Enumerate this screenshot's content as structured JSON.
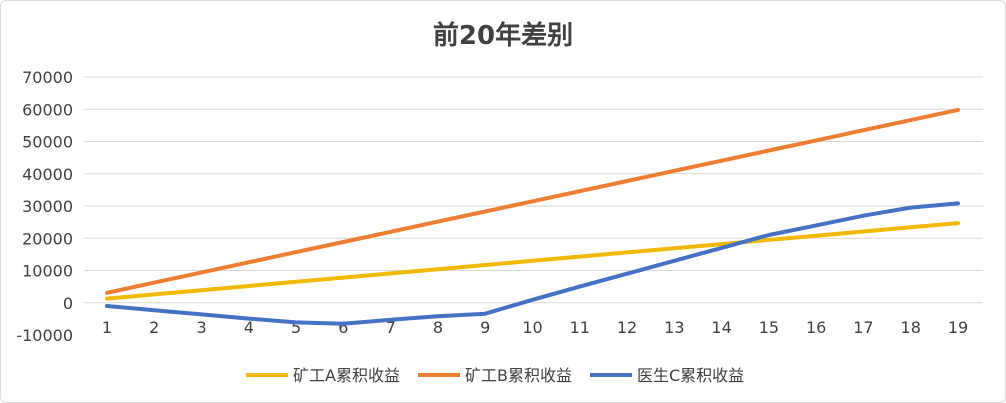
{
  "chart_data": {
    "type": "line",
    "title": "前20年差别",
    "xlabel": "",
    "ylabel": "",
    "x": [
      1,
      2,
      3,
      4,
      5,
      6,
      7,
      8,
      9,
      10,
      11,
      12,
      13,
      14,
      15,
      16,
      17,
      18,
      19
    ],
    "x_tick_labels": [
      "1",
      "2",
      "3",
      "4",
      "5",
      "6",
      "7",
      "8",
      "9",
      "10",
      "11",
      "12",
      "13",
      "14",
      "15",
      "16",
      "17",
      "18",
      "19"
    ],
    "ylim": [
      -10000,
      70000
    ],
    "y_ticks": [
      -10000,
      0,
      10000,
      20000,
      30000,
      40000,
      50000,
      60000,
      70000
    ],
    "y_tick_labels": [
      "-10000",
      "0",
      "10000",
      "20000",
      "30000",
      "40000",
      "50000",
      "60000",
      "70000"
    ],
    "grid": true,
    "legend_position": "bottom",
    "series": [
      {
        "name": "矿工A累积收益",
        "color": "#f2b800",
        "values": [
          1300,
          2600,
          3900,
          5200,
          6500,
          7800,
          9100,
          10400,
          11700,
          13000,
          14300,
          15600,
          16900,
          18200,
          19500,
          20800,
          22100,
          23400,
          24700
        ]
      },
      {
        "name": "矿工B累积收益",
        "color": "#ed7d31",
        "values": [
          3100,
          6250,
          9400,
          12550,
          15700,
          18850,
          22000,
          25150,
          28300,
          31450,
          34600,
          37750,
          40900,
          44050,
          47200,
          50350,
          53500,
          56650,
          59800
        ]
      },
      {
        "name": "医生C累积收益",
        "color": "#4472c4",
        "values": [
          -1000,
          -2300,
          -3600,
          -4900,
          -6100,
          -6500,
          -5300,
          -4200,
          -3400,
          900,
          5000,
          9000,
          13000,
          17000,
          21000,
          24000,
          27000,
          29500,
          30800
        ]
      }
    ]
  }
}
